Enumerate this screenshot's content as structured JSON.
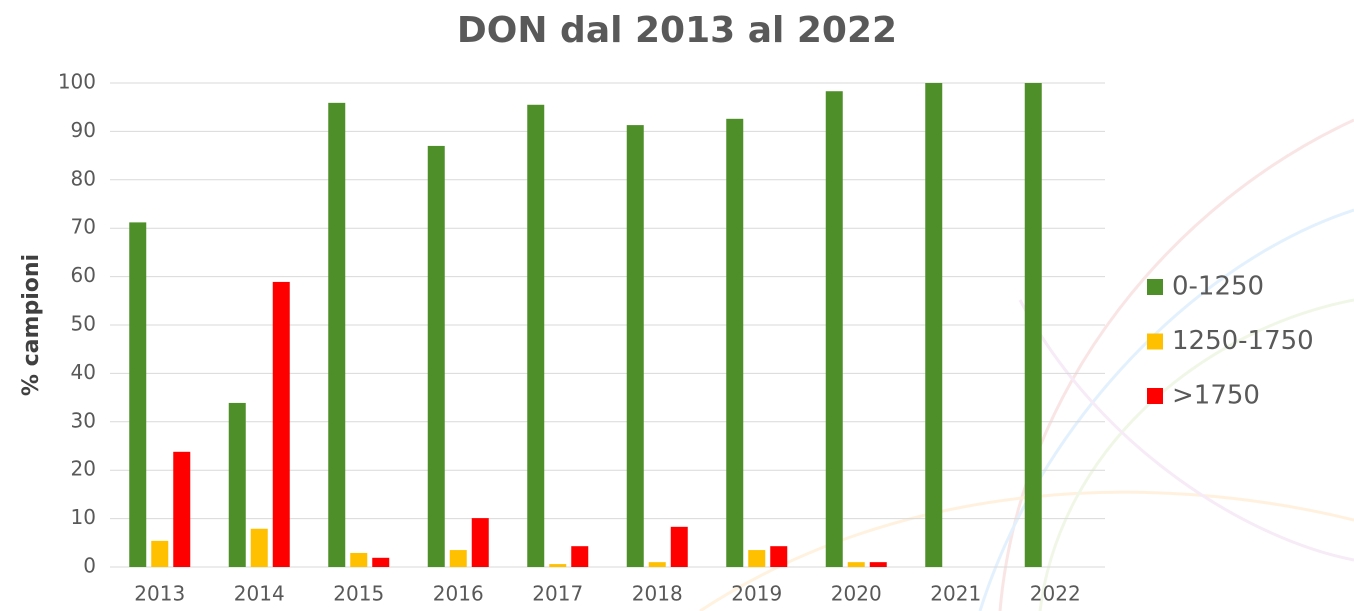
{
  "chart_data": {
    "type": "bar",
    "title": "DON dal 2013 al 2022",
    "y_label": "% campioni",
    "categories": [
      "2013",
      "2014",
      "2015",
      "2016",
      "2017",
      "2018",
      "2019",
      "2020",
      "2021",
      "2022"
    ],
    "series": [
      {
        "name": "0-1250",
        "color": "#4e8f2a",
        "values": [
          71.2,
          33.9,
          95.9,
          87.0,
          95.5,
          91.3,
          92.6,
          98.3,
          100,
          100
        ]
      },
      {
        "name": "1250-1750",
        "color": "#ffc000",
        "values": [
          5.4,
          7.9,
          2.9,
          3.5,
          0.6,
          1.0,
          3.5,
          1.0,
          0,
          0
        ]
      },
      {
        "name": ">1750",
        "color": "#ff0000",
        "values": [
          23.8,
          58.9,
          1.9,
          10.1,
          4.3,
          8.3,
          4.3,
          1.0,
          0,
          0
        ]
      }
    ],
    "ylim": [
      0,
      100
    ],
    "yticks": [
      0,
      10,
      20,
      30,
      40,
      50,
      60,
      70,
      80,
      90,
      100
    ],
    "grid": true,
    "legend": "right"
  }
}
